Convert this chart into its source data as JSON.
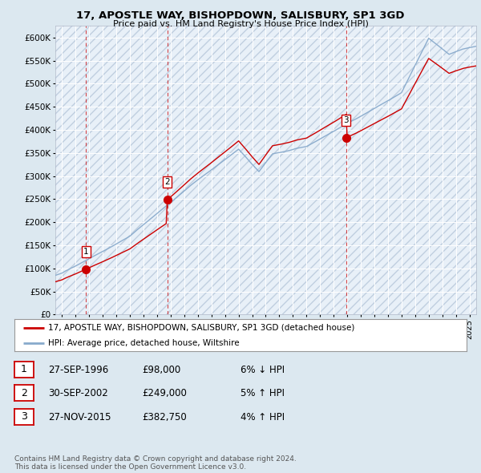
{
  "title": "17, APOSTLE WAY, BISHOPDOWN, SALISBURY, SP1 3GD",
  "subtitle": "Price paid vs. HM Land Registry's House Price Index (HPI)",
  "ylim": [
    0,
    625000
  ],
  "yticks": [
    0,
    50000,
    100000,
    150000,
    200000,
    250000,
    300000,
    350000,
    400000,
    450000,
    500000,
    550000,
    600000
  ],
  "ytick_labels": [
    "£0",
    "£50K",
    "£100K",
    "£150K",
    "£200K",
    "£250K",
    "£300K",
    "£350K",
    "£400K",
    "£450K",
    "£500K",
    "£550K",
    "£600K"
  ],
  "xlim_start": 1994.5,
  "xlim_end": 2025.5,
  "sales": [
    {
      "date": 1996.75,
      "price": 98000,
      "label": "1"
    },
    {
      "date": 2002.75,
      "price": 249000,
      "label": "2"
    },
    {
      "date": 2015.917,
      "price": 382750,
      "label": "3"
    }
  ],
  "sale_color": "#cc0000",
  "hpi_color": "#88aacc",
  "legend_sale": "17, APOSTLE WAY, BISHOPDOWN, SALISBURY, SP1 3GD (detached house)",
  "legend_hpi": "HPI: Average price, detached house, Wiltshire",
  "table": [
    {
      "num": "1",
      "date": "27-SEP-1996",
      "price": "£98,000",
      "hpi": "6% ↓ HPI"
    },
    {
      "num": "2",
      "date": "30-SEP-2002",
      "price": "£249,000",
      "hpi": "5% ↑ HPI"
    },
    {
      "num": "3",
      "date": "27-NOV-2015",
      "price": "£382,750",
      "hpi": "4% ↑ HPI"
    }
  ],
  "footer": "Contains HM Land Registry data © Crown copyright and database right 2024.\nThis data is licensed under the Open Government Licence v3.0.",
  "bg_color": "#dce8f0",
  "plot_bg": "#e8f0f8"
}
